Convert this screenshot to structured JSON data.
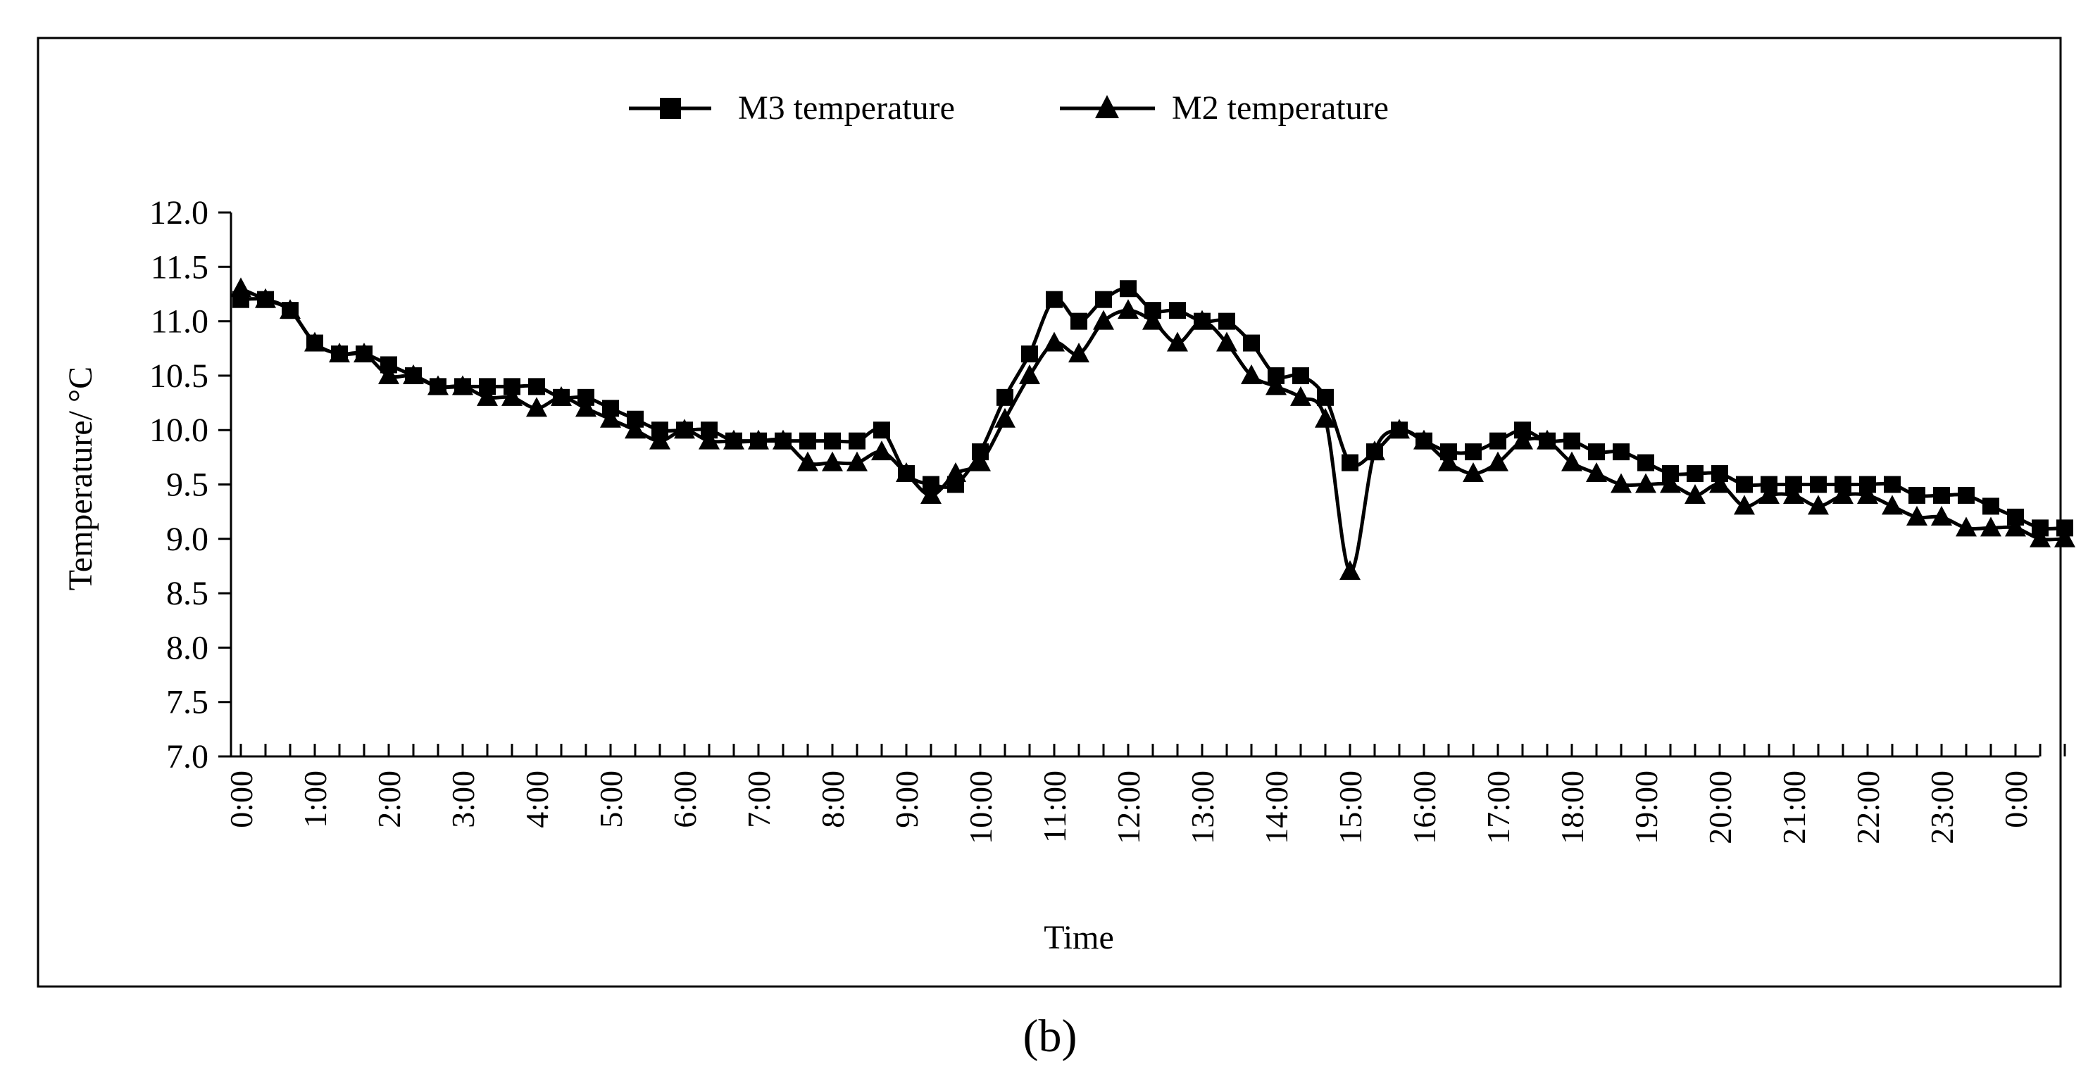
{
  "figure_label": "(b)",
  "chart_data": {
    "type": "line",
    "title": "",
    "xlabel": "Time",
    "ylabel": "Temperature/ °C",
    "ylim": [
      7.0,
      12.0
    ],
    "y_ticks": [
      "7.0",
      "7.5",
      "8.0",
      "8.5",
      "9.0",
      "9.5",
      "10.0",
      "10.5",
      "11.0",
      "11.5",
      "12.0"
    ],
    "legend_position": "top-center",
    "tick_labels": [
      "0:00",
      "1:00",
      "2:00",
      "3:00",
      "4:00",
      "5:00",
      "6:00",
      "7:00",
      "8:00",
      "9:00",
      "10:00",
      "11:00",
      "12:00",
      "13:00",
      "14:00",
      "15:00",
      "16:00",
      "17:00",
      "18:00",
      "19:00",
      "20:00",
      "21:00",
      "22:00",
      "23:00",
      "0:00"
    ],
    "points_per_hour": 3,
    "series": [
      {
        "name": "M3 temperature",
        "marker": "square",
        "values": [
          11.2,
          11.2,
          11.1,
          10.8,
          10.7,
          10.7,
          10.6,
          10.5,
          10.4,
          10.4,
          10.4,
          10.4,
          10.4,
          10.3,
          10.3,
          10.2,
          10.1,
          10.0,
          10.0,
          10.0,
          9.9,
          9.9,
          9.9,
          9.9,
          9.9,
          9.9,
          10.0,
          9.6,
          9.5,
          9.5,
          9.8,
          10.3,
          10.7,
          11.2,
          11.0,
          11.2,
          11.3,
          11.1,
          11.1,
          11.0,
          11.0,
          10.8,
          10.5,
          10.5,
          10.3,
          9.7,
          9.8,
          10.0,
          9.9,
          9.8,
          9.8,
          9.9,
          10.0,
          9.9,
          9.9,
          9.8,
          9.8,
          9.7,
          9.6,
          9.6,
          9.6,
          9.5,
          9.5,
          9.5,
          9.5,
          9.5,
          9.5,
          9.5,
          9.4,
          9.4,
          9.4,
          9.3,
          9.2,
          9.1,
          9.1
        ]
      },
      {
        "name": "M2 temperature",
        "marker": "triangle",
        "values": [
          11.3,
          11.2,
          11.1,
          10.8,
          10.7,
          10.7,
          10.5,
          10.5,
          10.4,
          10.4,
          10.3,
          10.3,
          10.2,
          10.3,
          10.2,
          10.1,
          10.0,
          9.9,
          10.0,
          9.9,
          9.9,
          9.9,
          9.9,
          9.7,
          9.7,
          9.7,
          9.8,
          9.6,
          9.4,
          9.6,
          9.7,
          10.1,
          10.5,
          10.8,
          10.7,
          11.0,
          11.1,
          11.0,
          10.8,
          11.0,
          10.8,
          10.5,
          10.4,
          10.3,
          10.1,
          8.7,
          9.8,
          10.0,
          9.9,
          9.7,
          9.6,
          9.7,
          9.9,
          9.9,
          9.7,
          9.6,
          9.5,
          9.5,
          9.5,
          9.4,
          9.5,
          9.3,
          9.4,
          9.4,
          9.3,
          9.4,
          9.4,
          9.3,
          9.2,
          9.2,
          9.1,
          9.1,
          9.1,
          9.0,
          9.0
        ]
      }
    ]
  }
}
